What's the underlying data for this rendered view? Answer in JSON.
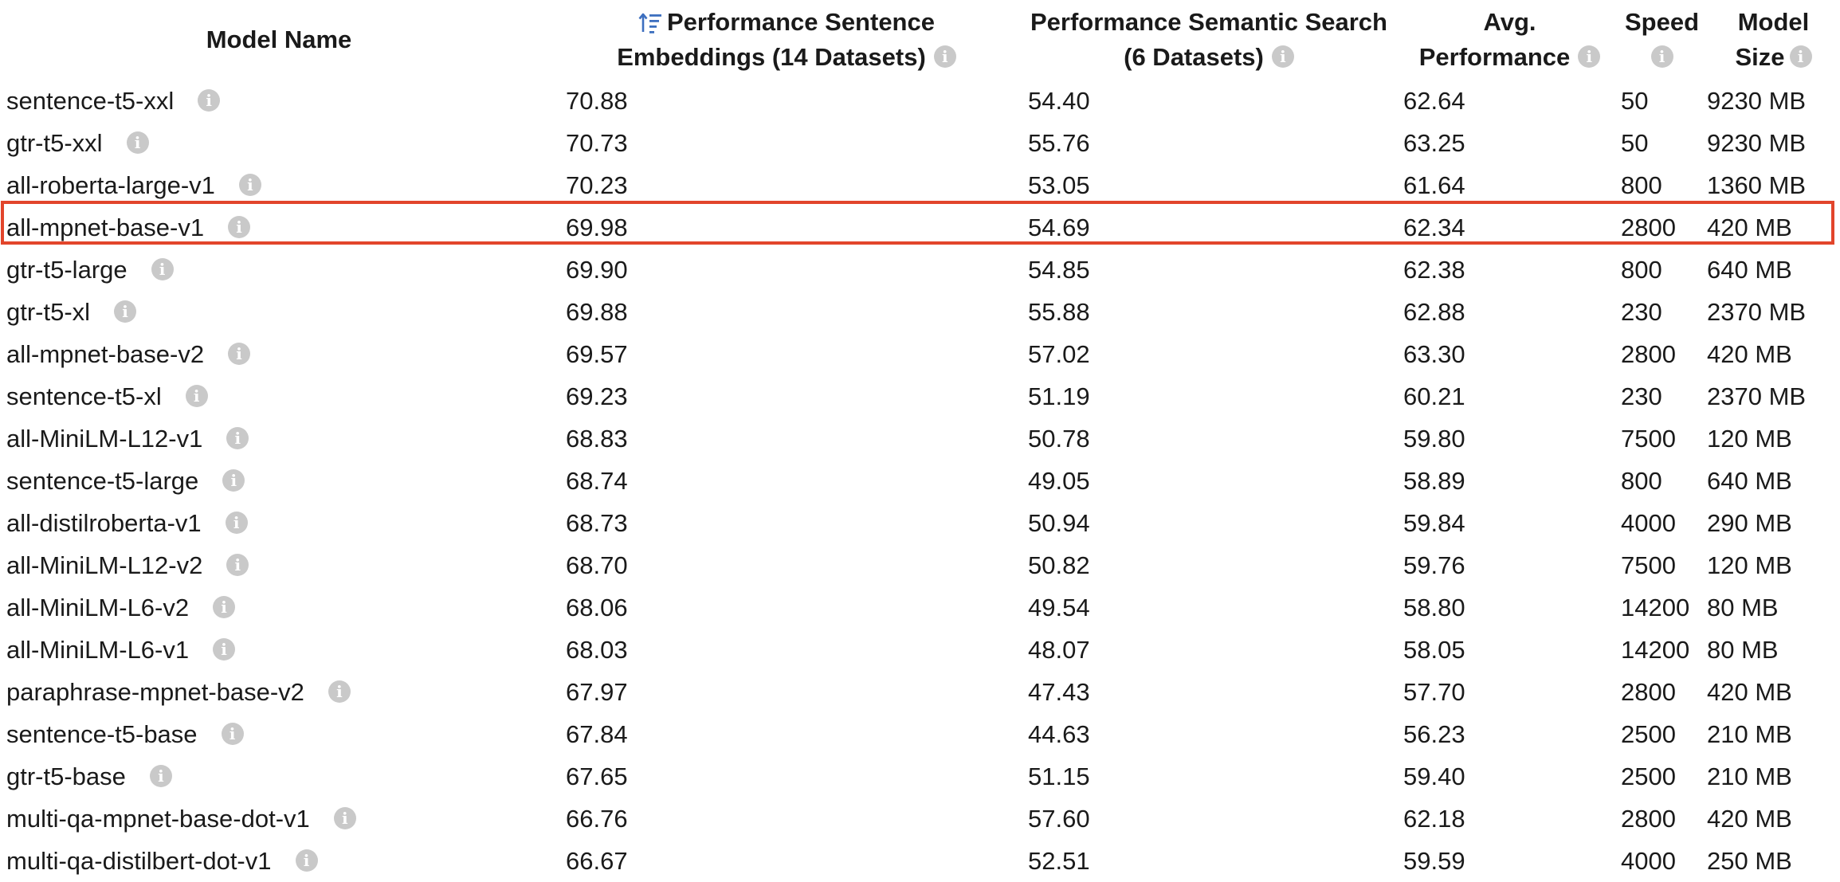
{
  "headers": {
    "model_name": "Model Name",
    "sentence_line1": "Performance Sentence",
    "sentence_line2": "Embeddings (14 Datasets)",
    "semantic_line1": "Performance Semantic Search",
    "semantic_line2": "(6 Datasets)",
    "avg_line1": "Avg.",
    "avg_line2": "Performance",
    "speed_line1": "Speed",
    "size_line1": "Model",
    "size_line2": "Size"
  },
  "sort": {
    "column": "Performance Sentence Embeddings (14 Datasets)",
    "direction": "descending",
    "icon": "sort-icon"
  },
  "info_glyph": "i",
  "highlight": {
    "row_index": 3,
    "color": "#e2452b"
  },
  "colors": {
    "accent_blue": "#3d6fbf",
    "info_gray": "#c9c9c9",
    "highlight_red": "#e2452b"
  },
  "rows": [
    {
      "name": "sentence-t5-xxl",
      "sentence": "70.88",
      "semantic": "54.40",
      "avg": "62.64",
      "speed": "50",
      "size": "9230 MB"
    },
    {
      "name": "gtr-t5-xxl",
      "sentence": "70.73",
      "semantic": "55.76",
      "avg": "63.25",
      "speed": "50",
      "size": "9230 MB"
    },
    {
      "name": "all-roberta-large-v1",
      "sentence": "70.23",
      "semantic": "53.05",
      "avg": "61.64",
      "speed": "800",
      "size": "1360 MB"
    },
    {
      "name": "all-mpnet-base-v1",
      "sentence": "69.98",
      "semantic": "54.69",
      "avg": "62.34",
      "speed": "2800",
      "size": "420 MB"
    },
    {
      "name": "gtr-t5-large",
      "sentence": "69.90",
      "semantic": "54.85",
      "avg": "62.38",
      "speed": "800",
      "size": "640 MB"
    },
    {
      "name": "gtr-t5-xl",
      "sentence": "69.88",
      "semantic": "55.88",
      "avg": "62.88",
      "speed": "230",
      "size": "2370 MB"
    },
    {
      "name": "all-mpnet-base-v2",
      "sentence": "69.57",
      "semantic": "57.02",
      "avg": "63.30",
      "speed": "2800",
      "size": "420 MB"
    },
    {
      "name": "sentence-t5-xl",
      "sentence": "69.23",
      "semantic": "51.19",
      "avg": "60.21",
      "speed": "230",
      "size": "2370 MB"
    },
    {
      "name": "all-MiniLM-L12-v1",
      "sentence": "68.83",
      "semantic": "50.78",
      "avg": "59.80",
      "speed": "7500",
      "size": "120 MB"
    },
    {
      "name": "sentence-t5-large",
      "sentence": "68.74",
      "semantic": "49.05",
      "avg": "58.89",
      "speed": "800",
      "size": "640 MB"
    },
    {
      "name": "all-distilroberta-v1",
      "sentence": "68.73",
      "semantic": "50.94",
      "avg": "59.84",
      "speed": "4000",
      "size": "290 MB"
    },
    {
      "name": "all-MiniLM-L12-v2",
      "sentence": "68.70",
      "semantic": "50.82",
      "avg": "59.76",
      "speed": "7500",
      "size": "120 MB"
    },
    {
      "name": "all-MiniLM-L6-v2",
      "sentence": "68.06",
      "semantic": "49.54",
      "avg": "58.80",
      "speed": "14200",
      "size": "80 MB"
    },
    {
      "name": "all-MiniLM-L6-v1",
      "sentence": "68.03",
      "semantic": "48.07",
      "avg": "58.05",
      "speed": "14200",
      "size": "80 MB"
    },
    {
      "name": "paraphrase-mpnet-base-v2",
      "sentence": "67.97",
      "semantic": "47.43",
      "avg": "57.70",
      "speed": "2800",
      "size": "420 MB"
    },
    {
      "name": "sentence-t5-base",
      "sentence": "67.84",
      "semantic": "44.63",
      "avg": "56.23",
      "speed": "2500",
      "size": "210 MB"
    },
    {
      "name": "gtr-t5-base",
      "sentence": "67.65",
      "semantic": "51.15",
      "avg": "59.40",
      "speed": "2500",
      "size": "210 MB"
    },
    {
      "name": "multi-qa-mpnet-base-dot-v1",
      "sentence": "66.76",
      "semantic": "57.60",
      "avg": "62.18",
      "speed": "2800",
      "size": "420 MB"
    },
    {
      "name": "multi-qa-distilbert-dot-v1",
      "sentence": "66.67",
      "semantic": "52.51",
      "avg": "59.59",
      "speed": "4000",
      "size": "250 MB"
    }
  ]
}
